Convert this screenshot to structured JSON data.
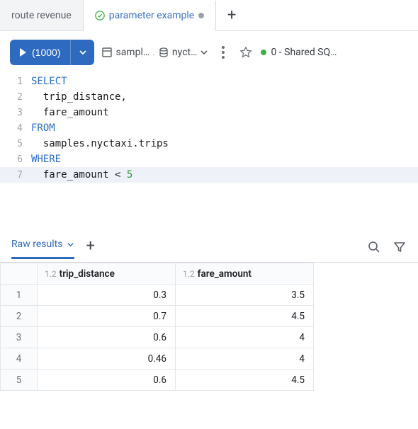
{
  "tabs": {
    "inactive_label": "route revenue",
    "active_label": "parameter example"
  },
  "toolbar": {
    "run_label": "(1000)",
    "catalog": "sampl…",
    "schema": "nyct…",
    "cluster": "0 - Shared SQ…"
  },
  "editor": {
    "lines": [
      {
        "n": "1",
        "pre": "",
        "kw": "SELECT",
        "post": ""
      },
      {
        "n": "2",
        "pre": "  ",
        "kw": "",
        "post": "trip_distance,"
      },
      {
        "n": "3",
        "pre": "  ",
        "kw": "",
        "post": "fare_amount"
      },
      {
        "n": "4",
        "pre": "",
        "kw": "FROM",
        "post": ""
      },
      {
        "n": "5",
        "pre": "  ",
        "kw": "",
        "post": "samples.nyctaxi.trips"
      },
      {
        "n": "6",
        "pre": "",
        "kw": "WHERE",
        "post": ""
      },
      {
        "n": "7",
        "pre": "  ",
        "kw": "",
        "post": "fare_amount < ",
        "num": "5",
        "hl": true
      }
    ]
  },
  "results": {
    "tab_label": "Raw results",
    "col_type_prefix": "1.2",
    "columns": [
      "trip_distance",
      "fare_amount"
    ],
    "rows": [
      {
        "i": "1",
        "c0": "0.3",
        "c1": "3.5"
      },
      {
        "i": "2",
        "c0": "0.7",
        "c1": "4.5"
      },
      {
        "i": "3",
        "c0": "0.6",
        "c1": "4"
      },
      {
        "i": "4",
        "c0": "0.46",
        "c1": "4"
      },
      {
        "i": "5",
        "c0": "0.6",
        "c1": "4.5"
      }
    ]
  }
}
